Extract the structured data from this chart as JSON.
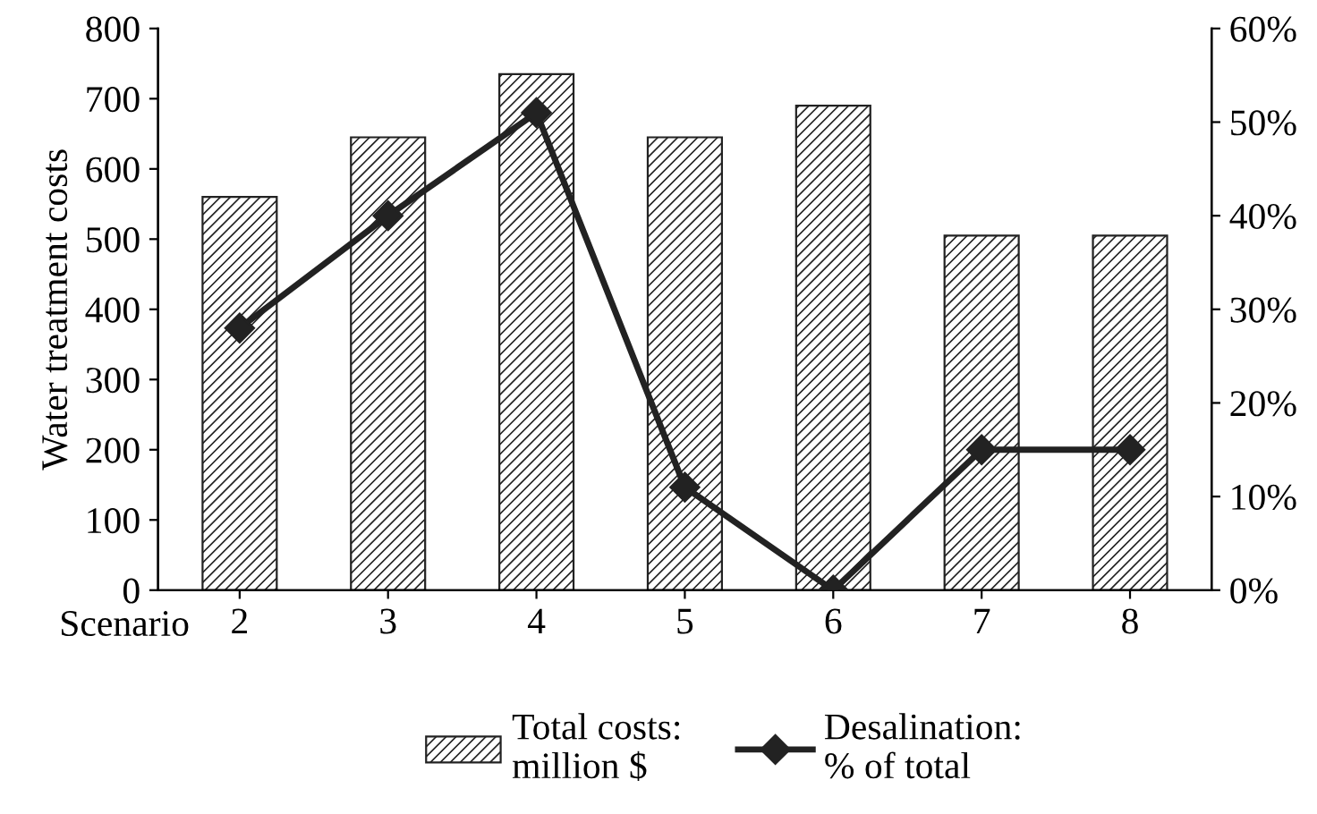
{
  "chart_data": {
    "type": "bar",
    "xlabel": "Scenario",
    "ylabel": "Water treatment costs",
    "categories": [
      "2",
      "3",
      "4",
      "5",
      "6",
      "7",
      "8"
    ],
    "series": [
      {
        "name": "Total costs:\nmillion $",
        "color": "#222222",
        "values": [
          560,
          645,
          735,
          645,
          690,
          505,
          505
        ]
      },
      {
        "name": "Desalination:\n% of total",
        "type": "line",
        "axis": "y2",
        "color": "#222222",
        "marker": "diamond",
        "values": [
          28,
          40,
          51,
          11,
          0,
          15,
          15
        ]
      }
    ],
    "ylim": [
      0,
      800
    ],
    "yticks": [
      0,
      100,
      200,
      300,
      400,
      500,
      600,
      700,
      800
    ],
    "y2lim": [
      0,
      60
    ],
    "y2ticks": [
      {
        "value": 0,
        "label": "0%"
      },
      {
        "value": 10,
        "label": "10%"
      },
      {
        "value": 20,
        "label": "20%"
      },
      {
        "value": 30,
        "label": "30%"
      },
      {
        "value": 40,
        "label": "40%"
      },
      {
        "value": 50,
        "label": "50%"
      },
      {
        "value": 60,
        "label": "60%"
      }
    ],
    "grid": false,
    "legend": "bottom"
  }
}
